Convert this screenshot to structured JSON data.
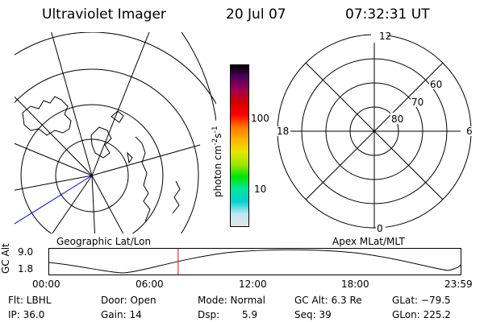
{
  "header": {
    "title": "Ultraviolet Imager",
    "date": "20 Jul 07",
    "time": "07:32:31 UT"
  },
  "left_plot": {
    "label": "Geographic Lat/Lon"
  },
  "right_plot": {
    "label": "Apex MLat/MLT",
    "mlt_labels": {
      "top": "12",
      "bottom": "0",
      "left": "18",
      "right": "6"
    },
    "lat_labels": [
      "60",
      "70",
      "80"
    ]
  },
  "colorbar": {
    "unit_label": "photon cm",
    "unit_sup1": "-2",
    "unit_mid": "s",
    "unit_sup2": "-1",
    "ticks": [
      "100",
      "10"
    ],
    "colors": [
      "#e6e6e6",
      "#bfe6f0",
      "#00d2d2",
      "#00e6a0",
      "#00e600",
      "#a0e600",
      "#e6e600",
      "#ffb400",
      "#ff7800",
      "#ff0000",
      "#d20000",
      "#a00050",
      "#500060",
      "#000000"
    ]
  },
  "altitude_panel": {
    "ylabel": "GC Alt",
    "ymax_label": "9.0",
    "ymin_label": "1.8",
    "time_ticks": [
      "00:00",
      "06:00",
      "12:00",
      "18:00",
      "23:59"
    ],
    "current_time_hours": 7.54,
    "marker_color": "#ff0000"
  },
  "status": {
    "flt": "Flt: LBHL",
    "ip": "IP: 36.0",
    "door": "Door: Open",
    "gain": "Gain: 14",
    "mode": "Mode: Normal",
    "dsp_label": "Dsp:",
    "dsp_value": "5.9",
    "gcalt": "GC Alt: 6.3 Re",
    "seq": "Seq: 39",
    "glat": "GLat: −79.5",
    "glon": "GLon: 225.2"
  }
}
